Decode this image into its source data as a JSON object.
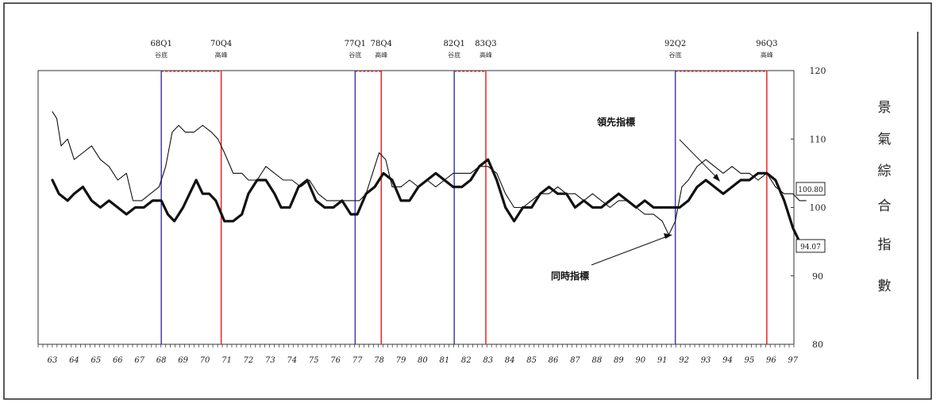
{
  "chart_data": {
    "type": "line",
    "right_title_chars": [
      "景",
      "氣",
      "綜",
      "合",
      "指",
      "數"
    ],
    "y_ticks": [
      80,
      90,
      100,
      110,
      120
    ],
    "ylim": [
      80,
      120
    ],
    "x_ticks": [
      "63",
      "64",
      "65",
      "66",
      "67",
      "68",
      "69",
      "70",
      "71",
      "72",
      "73",
      "74",
      "75",
      "76",
      "77",
      "78",
      "79",
      "80",
      "81",
      "82",
      "83",
      "84",
      "85",
      "86",
      "87",
      "88",
      "89",
      "90",
      "91",
      "92",
      "93",
      "94",
      "95",
      "96",
      "97"
    ],
    "xlim": [
      63,
      97.7
    ],
    "turning_points": [
      {
        "label": "68Q1",
        "sub": "谷底",
        "x": 68.0,
        "kind": "trough"
      },
      {
        "label": "70Q4",
        "sub": "高峰",
        "x": 70.75,
        "kind": "peak"
      },
      {
        "label": "77Q1",
        "sub": "谷底",
        "x": 76.9,
        "kind": "trough"
      },
      {
        "label": "78Q4",
        "sub": "高峰",
        "x": 78.1,
        "kind": "peak"
      },
      {
        "label": "82Q1",
        "sub": "谷底",
        "x": 81.45,
        "kind": "trough"
      },
      {
        "label": "83Q3",
        "sub": "高峰",
        "x": 82.9,
        "kind": "peak"
      },
      {
        "label": "92Q2",
        "sub": "谷底",
        "x": 91.6,
        "kind": "trough"
      },
      {
        "label": "96Q3",
        "sub": "高峰",
        "x": 95.8,
        "kind": "peak"
      }
    ],
    "end_labels": {
      "leading": "100.80",
      "coincident": "94.07"
    },
    "annotations": {
      "leading": "領先指標",
      "coincident": "同時指標"
    },
    "series": [
      {
        "key": "leading",
        "style": "thin",
        "points": [
          [
            63,
            114
          ],
          [
            63.2,
            113
          ],
          [
            63.4,
            109
          ],
          [
            63.7,
            110
          ],
          [
            64,
            107
          ],
          [
            64.4,
            108
          ],
          [
            64.8,
            109
          ],
          [
            65.2,
            107
          ],
          [
            65.6,
            106
          ],
          [
            66,
            104
          ],
          [
            66.4,
            105
          ],
          [
            66.7,
            101
          ],
          [
            67.1,
            101
          ],
          [
            67.5,
            102
          ],
          [
            67.9,
            103
          ],
          [
            68.2,
            106
          ],
          [
            68.5,
            111
          ],
          [
            68.8,
            112
          ],
          [
            69.1,
            111
          ],
          [
            69.5,
            111
          ],
          [
            69.9,
            112
          ],
          [
            70.3,
            111
          ],
          [
            70.6,
            110
          ],
          [
            70.9,
            108
          ],
          [
            71.3,
            105
          ],
          [
            71.7,
            105
          ],
          [
            72,
            104
          ],
          [
            72.4,
            104
          ],
          [
            72.8,
            106
          ],
          [
            73.2,
            105
          ],
          [
            73.6,
            104
          ],
          [
            74,
            104
          ],
          [
            74.4,
            103
          ],
          [
            74.8,
            104
          ],
          [
            75.2,
            102
          ],
          [
            75.6,
            101
          ],
          [
            76,
            101
          ],
          [
            76.4,
            101
          ],
          [
            76.8,
            101
          ],
          [
            77.1,
            101
          ],
          [
            77.4,
            102
          ],
          [
            77.7,
            105
          ],
          [
            78,
            108
          ],
          [
            78.3,
            107
          ],
          [
            78.6,
            103
          ],
          [
            79,
            103
          ],
          [
            79.4,
            104
          ],
          [
            79.8,
            103
          ],
          [
            80.2,
            104
          ],
          [
            80.6,
            103
          ],
          [
            81,
            104
          ],
          [
            81.4,
            105
          ],
          [
            81.8,
            105
          ],
          [
            82.2,
            105
          ],
          [
            82.6,
            106
          ],
          [
            83,
            106
          ],
          [
            83.4,
            105
          ],
          [
            83.8,
            102
          ],
          [
            84.2,
            100
          ],
          [
            84.6,
            100
          ],
          [
            85,
            101
          ],
          [
            85.4,
            102
          ],
          [
            85.8,
            102
          ],
          [
            86.2,
            103
          ],
          [
            86.6,
            102
          ],
          [
            87,
            102
          ],
          [
            87.4,
            101
          ],
          [
            87.8,
            102
          ],
          [
            88.2,
            101
          ],
          [
            88.6,
            100
          ],
          [
            89,
            101
          ],
          [
            89.4,
            101
          ],
          [
            89.8,
            100
          ],
          [
            90.2,
            99
          ],
          [
            90.6,
            99
          ],
          [
            91,
            98
          ],
          [
            91.3,
            96
          ],
          [
            91.6,
            98
          ],
          [
            91.9,
            103
          ],
          [
            92.2,
            104
          ],
          [
            92.6,
            106
          ],
          [
            93,
            107
          ],
          [
            93.4,
            106
          ],
          [
            93.8,
            105
          ],
          [
            94.2,
            106
          ],
          [
            94.6,
            105
          ],
          [
            95,
            105
          ],
          [
            95.4,
            104
          ],
          [
            95.8,
            105
          ],
          [
            96.2,
            103
          ],
          [
            96.6,
            102
          ],
          [
            97,
            102
          ],
          [
            97.3,
            101
          ],
          [
            97.6,
            101
          ]
        ]
      },
      {
        "key": "coincident",
        "style": "thick",
        "points": [
          [
            63,
            104
          ],
          [
            63.3,
            102
          ],
          [
            63.7,
            101
          ],
          [
            64,
            102
          ],
          [
            64.4,
            103
          ],
          [
            64.8,
            101
          ],
          [
            65.2,
            100
          ],
          [
            65.6,
            101
          ],
          [
            66,
            100
          ],
          [
            66.4,
            99
          ],
          [
            66.8,
            100
          ],
          [
            67.2,
            100
          ],
          [
            67.6,
            101
          ],
          [
            68,
            101
          ],
          [
            68.3,
            99
          ],
          [
            68.6,
            98
          ],
          [
            69,
            100
          ],
          [
            69.3,
            102
          ],
          [
            69.6,
            104
          ],
          [
            69.9,
            102
          ],
          [
            70.2,
            102
          ],
          [
            70.5,
            101
          ],
          [
            70.9,
            98
          ],
          [
            71.3,
            98
          ],
          [
            71.7,
            99
          ],
          [
            72,
            102
          ],
          [
            72.4,
            104
          ],
          [
            72.8,
            104
          ],
          [
            73.2,
            102
          ],
          [
            73.5,
            100
          ],
          [
            73.9,
            100
          ],
          [
            74.3,
            103
          ],
          [
            74.7,
            104
          ],
          [
            75.1,
            101
          ],
          [
            75.5,
            100
          ],
          [
            75.9,
            100
          ],
          [
            76.3,
            101
          ],
          [
            76.7,
            99
          ],
          [
            77,
            99
          ],
          [
            77.4,
            102
          ],
          [
            77.8,
            103
          ],
          [
            78.2,
            105
          ],
          [
            78.6,
            104
          ],
          [
            79,
            101
          ],
          [
            79.4,
            101
          ],
          [
            79.8,
            103
          ],
          [
            80.2,
            104
          ],
          [
            80.6,
            105
          ],
          [
            81,
            104
          ],
          [
            81.4,
            103
          ],
          [
            81.8,
            103
          ],
          [
            82.2,
            104
          ],
          [
            82.6,
            106
          ],
          [
            83,
            107
          ],
          [
            83.4,
            104
          ],
          [
            83.8,
            100
          ],
          [
            84.2,
            98
          ],
          [
            84.6,
            100
          ],
          [
            85,
            100
          ],
          [
            85.4,
            102
          ],
          [
            85.8,
            103
          ],
          [
            86.2,
            102
          ],
          [
            86.6,
            102
          ],
          [
            87,
            100
          ],
          [
            87.4,
            101
          ],
          [
            87.8,
            100
          ],
          [
            88.2,
            100
          ],
          [
            88.6,
            101
          ],
          [
            89,
            102
          ],
          [
            89.4,
            101
          ],
          [
            89.8,
            100
          ],
          [
            90.2,
            101
          ],
          [
            90.6,
            100
          ],
          [
            91,
            100
          ],
          [
            91.4,
            100
          ],
          [
            91.8,
            100
          ],
          [
            92.2,
            101
          ],
          [
            92.6,
            103
          ],
          [
            93,
            104
          ],
          [
            93.4,
            103
          ],
          [
            93.8,
            102
          ],
          [
            94.2,
            103
          ],
          [
            94.6,
            104
          ],
          [
            95,
            104
          ],
          [
            95.4,
            105
          ],
          [
            95.8,
            105
          ],
          [
            96.2,
            104
          ],
          [
            96.6,
            101
          ],
          [
            97,
            97
          ],
          [
            97.3,
            95
          ],
          [
            97.6,
            94
          ]
        ]
      }
    ]
  }
}
